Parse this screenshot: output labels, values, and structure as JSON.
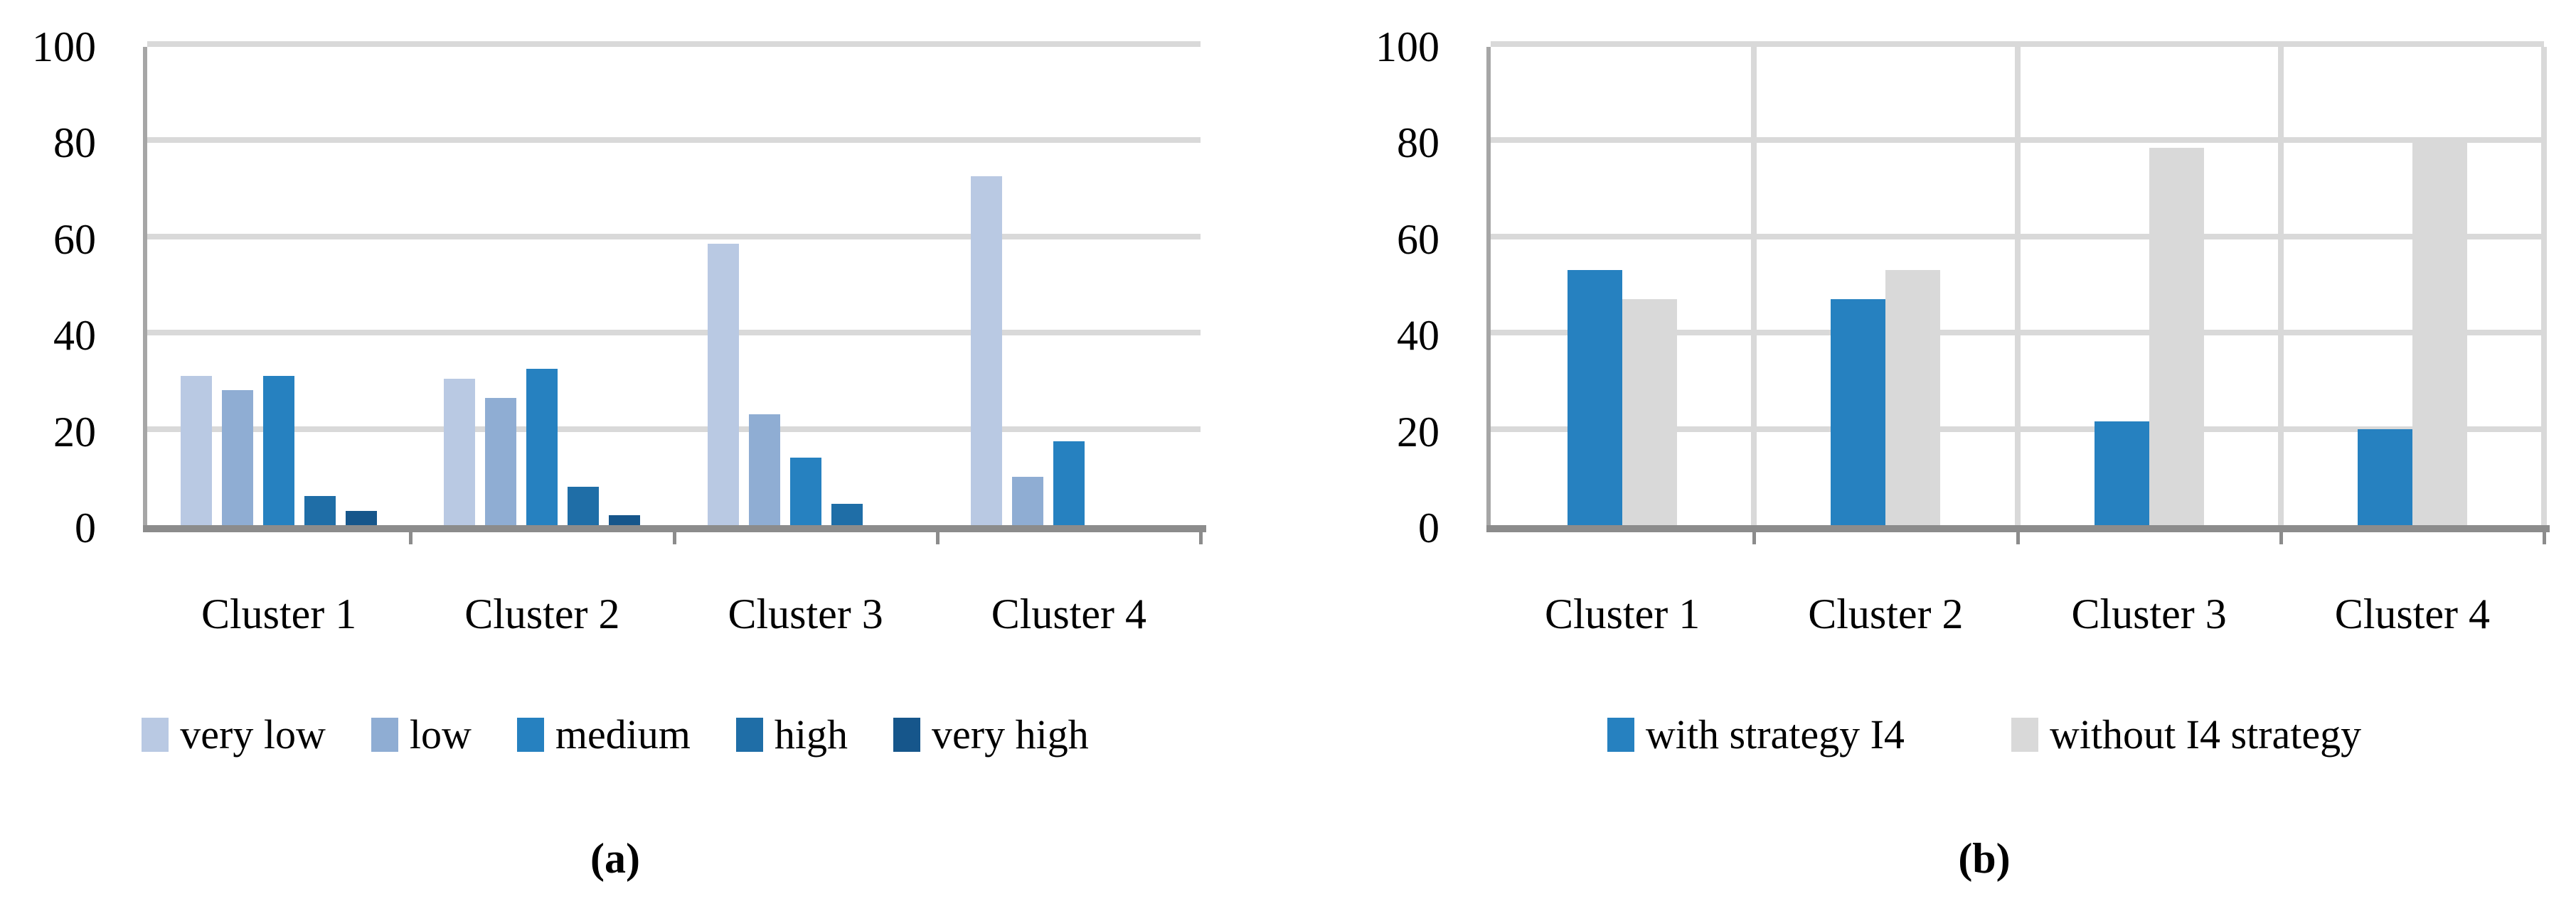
{
  "figure": {
    "background": "#ffffff",
    "text_color": "#000000",
    "gridline_color": "#d9d9d9",
    "x_axis_color": "#8c8c8c",
    "y_axis_color": "#a6a6a6"
  },
  "chart_data": [
    {
      "id": "a",
      "type": "bar",
      "caption": "(a)",
      "categories": [
        "Cluster 1",
        "Cluster 2",
        "Cluster 3",
        "Cluster 4"
      ],
      "series": [
        {
          "name": "very low",
          "color": "#b9c9e3",
          "values": [
            31,
            30.5,
            58.5,
            72.5
          ]
        },
        {
          "name": "low",
          "color": "#8fadd3",
          "values": [
            28,
            26.5,
            23,
            10
          ]
        },
        {
          "name": "medium",
          "color": "#2681c0",
          "values": [
            31,
            32.5,
            14,
            17.5
          ]
        },
        {
          "name": "high",
          "color": "#1f6ea7",
          "values": [
            6,
            8,
            4.5,
            0
          ]
        },
        {
          "name": "very high",
          "color": "#16568b",
          "values": [
            3,
            2,
            0,
            0
          ]
        }
      ],
      "ylim": [
        0,
        100
      ],
      "y_ticks": [
        0,
        20,
        40,
        60,
        80,
        100
      ],
      "grid": true,
      "category_gridlines": false,
      "legend_position": "bottom"
    },
    {
      "id": "b",
      "type": "bar",
      "caption": "(b)",
      "categories": [
        "Cluster 1",
        "Cluster 2",
        "Cluster 3",
        "Cluster 4"
      ],
      "series": [
        {
          "name": "with strategy I4",
          "color": "#2681c0",
          "values": [
            53,
            47,
            21.5,
            20
          ]
        },
        {
          "name": "without I4 strategy",
          "color": "#d9d9d9",
          "values": [
            47,
            53,
            78.5,
            80
          ]
        }
      ],
      "ylim": [
        0,
        100
      ],
      "y_ticks": [
        0,
        20,
        40,
        60,
        80,
        100
      ],
      "grid": true,
      "category_gridlines": true,
      "legend_position": "bottom"
    }
  ]
}
